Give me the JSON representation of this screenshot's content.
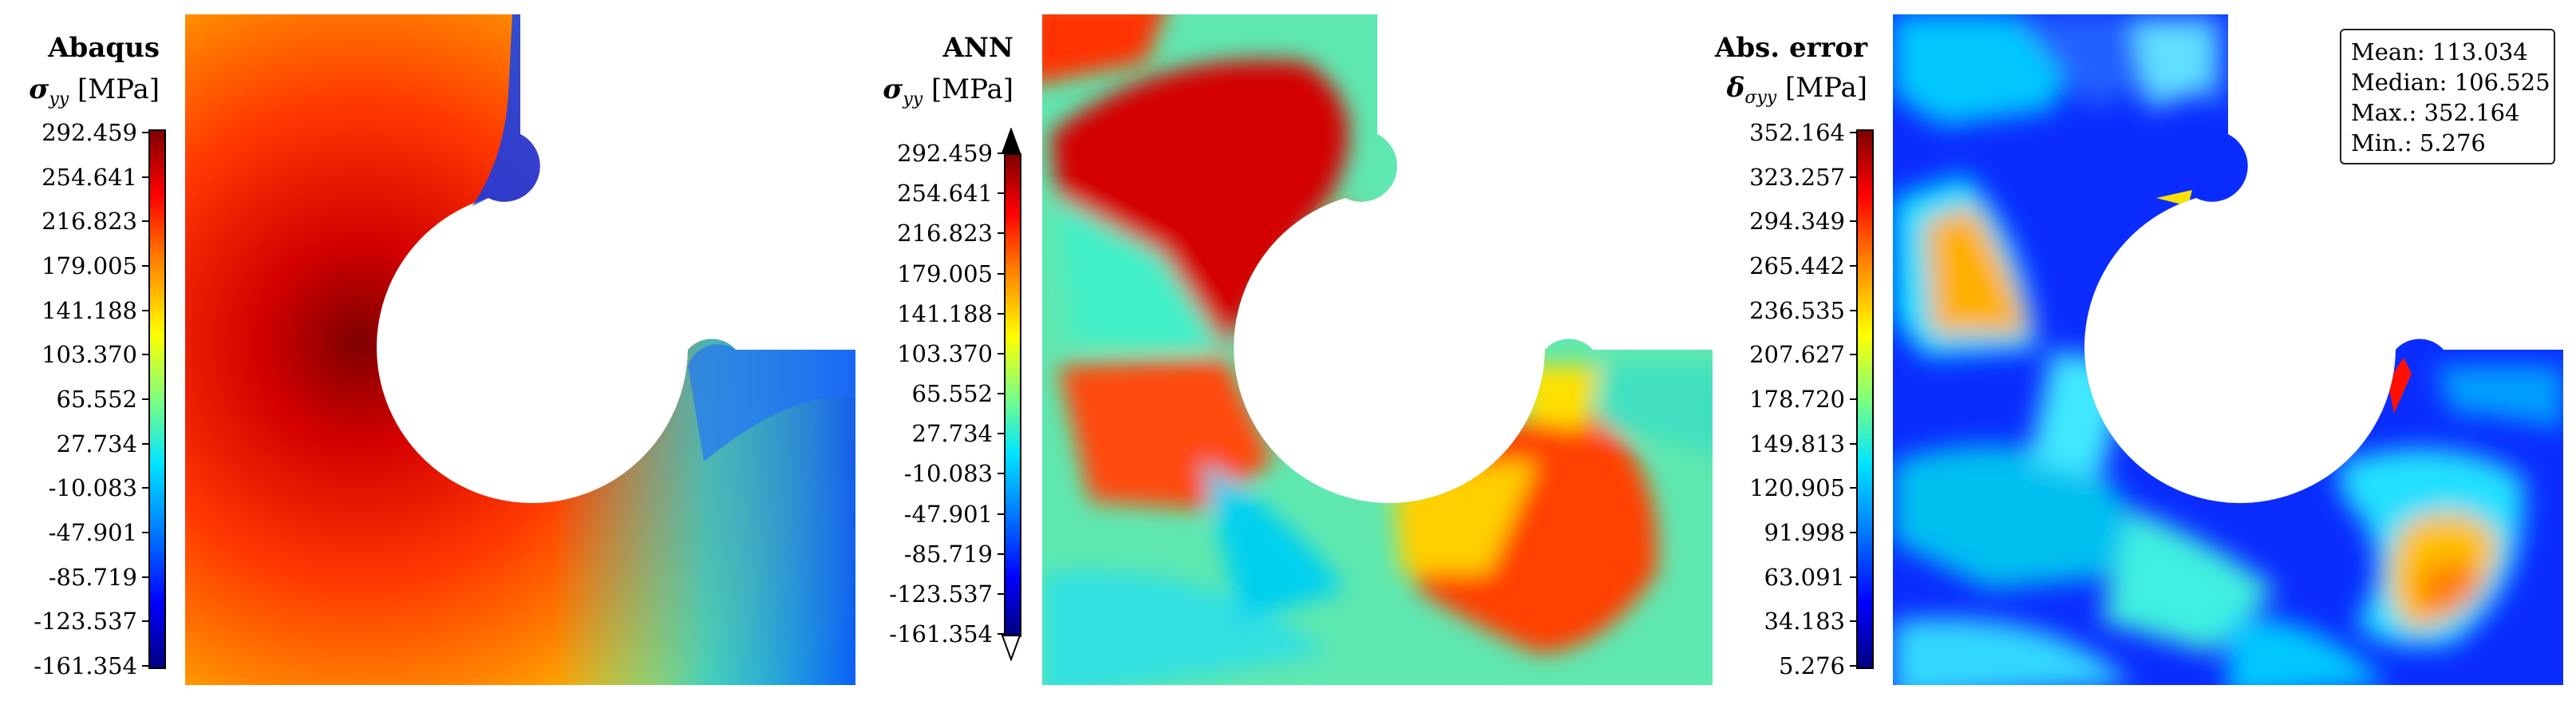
{
  "panels": [
    {
      "title": "Abaqus",
      "quantity": {
        "symbol": "σ",
        "sub": "yy",
        "unit": "[MPa]"
      },
      "colorbar_ticks": [
        "292.459",
        "254.641",
        "216.823",
        "179.005",
        "141.188",
        "103.370",
        "65.552",
        "27.734",
        "-10.083",
        "-47.901",
        "-85.719",
        "-123.537",
        "-161.354"
      ],
      "extend_arrows": false
    },
    {
      "title": "ANN",
      "quantity": {
        "symbol": "σ",
        "sub": "yy",
        "unit": "[MPa]"
      },
      "colorbar_ticks": [
        "292.459",
        "254.641",
        "216.823",
        "179.005",
        "141.188",
        "103.370",
        "65.552",
        "27.734",
        "-10.083",
        "-47.901",
        "-85.719",
        "-123.537",
        "-161.354"
      ],
      "extend_arrows": true
    },
    {
      "title": "Abs. error",
      "quantity": {
        "symbol": "δ",
        "sub": "σyy",
        "unit": "[MPa]"
      },
      "colorbar_ticks": [
        "352.164",
        "323.257",
        "294.349",
        "265.442",
        "236.535",
        "207.627",
        "178.720",
        "149.813",
        "120.905",
        "91.998",
        "63.091",
        "34.183",
        "5.276"
      ],
      "extend_arrows": false
    }
  ],
  "stats": {
    "mean": "Mean: 113.034",
    "median": "Median: 106.525",
    "max": "Max.: 352.164",
    "min": "Min.: 5.276"
  },
  "colormap": [
    "#00007f",
    "#0000ff",
    "#0080ff",
    "#00e5ff",
    "#7fff7f",
    "#ffff00",
    "#ff8000",
    "#ff0000",
    "#7f0000"
  ]
}
